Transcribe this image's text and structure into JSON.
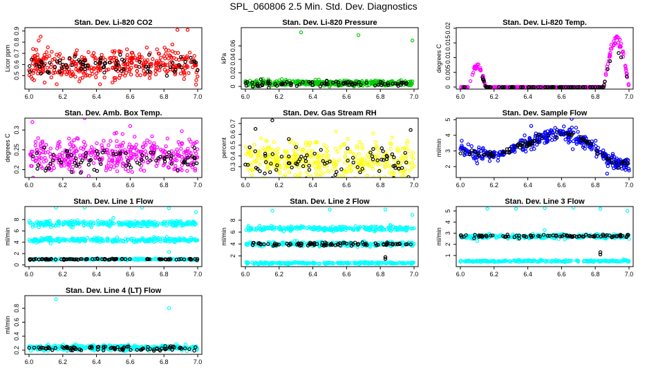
{
  "figure_title": "SPL_060806  2.5 Min. Std. Dev. Diagnostics",
  "chart_data": [
    {
      "type": "scatter",
      "title": "Stan. Dev. Li-820 CO2",
      "ylabel": "Licor ppm",
      "xlim": [
        6.0,
        7.0
      ],
      "ylim": [
        0.38,
        0.93
      ],
      "xticks": [
        "6.0",
        "6.2",
        "6.4",
        "6.6",
        "6.8",
        "7.0"
      ],
      "yticks": [
        0.5,
        0.6,
        0.7,
        0.8,
        0.9
      ],
      "series": [
        {
          "name": "bulk",
          "color": "#ff0000",
          "gen": {
            "base": 0.6,
            "noise": 0.07,
            "n": 380,
            "seed": 11
          }
        },
        {
          "name": "black",
          "color": "#000000",
          "gen": {
            "base": 0.59,
            "noise": 0.05,
            "n": 80,
            "seed": 12
          }
        },
        {
          "name": "outliers",
          "color": "#ff0000",
          "points": [
            [
              6.88,
              0.91
            ],
            [
              6.94,
              0.91
            ],
            [
              6.99,
              0.42
            ],
            [
              6.03,
              0.46
            ],
            [
              6.85,
              0.78
            ]
          ]
        }
      ]
    },
    {
      "type": "scatter",
      "title": "Stan. Dev. Li-820 Pressure",
      "ylabel": "kPa",
      "xlim": [
        6.0,
        7.0
      ],
      "ylim": [
        -0.004,
        0.087
      ],
      "xticks": [
        "6.0",
        "6.2",
        "6.4",
        "6.6",
        "6.8",
        "7.0"
      ],
      "yticks": [
        0.0,
        0.02,
        0.04,
        0.06
      ],
      "series": [
        {
          "name": "bulk",
          "color": "#00cc00",
          "gen": {
            "base": 0.005,
            "noise": 0.002,
            "n": 380,
            "seed": 21
          }
        },
        {
          "name": "black",
          "color": "#000000",
          "gen": {
            "base": 0.004,
            "noise": 0.002,
            "n": 80,
            "seed": 22
          }
        },
        {
          "name": "outliers",
          "color": "#00cc00",
          "points": [
            [
              6.33,
              0.08
            ],
            [
              6.67,
              0.076
            ],
            [
              6.99,
              0.068
            ]
          ]
        }
      ]
    },
    {
      "type": "scatter",
      "title": "Stan. Dev. Li-820 Temp.",
      "ylabel": "degrees C",
      "xlim": [
        6.0,
        7.0
      ],
      "ylim": [
        -0.0007,
        0.0202
      ],
      "xticks": [
        "6.0",
        "6.2",
        "6.4",
        "6.6",
        "6.8",
        "7.0"
      ],
      "yticks": [
        0.0,
        0.005,
        0.01,
        0.015,
        0.02
      ],
      "series": [
        {
          "name": "bulk",
          "color": "#ff00ff",
          "gen": {
            "base": 0.0,
            "noise": 0.0,
            "n": 300,
            "seed": 31,
            "humps": [
              [
                6.05,
                6.15,
                0.008
              ],
              [
                6.85,
                7.0,
                0.018
              ]
            ]
          }
        },
        {
          "name": "black",
          "color": "#000000",
          "gen": {
            "base": 0.0,
            "noise": 0.0,
            "n": 80,
            "seed": 32,
            "humps": [
              [
                6.05,
                6.15,
                0.006
              ],
              [
                6.85,
                7.0,
                0.015
              ]
            ]
          }
        }
      ]
    },
    {
      "type": "scatter",
      "title": "Stan. Dev. Amb. Box Temp.",
      "ylabel": "degrees C",
      "xlim": [
        6.0,
        7.0
      ],
      "ylim": [
        0.18,
        0.33
      ],
      "xticks": [
        "6.0",
        "6.2",
        "6.4",
        "6.6",
        "6.8",
        "7.0"
      ],
      "yticks": [
        0.2,
        0.25,
        0.3
      ],
      "series": [
        {
          "name": "bulk",
          "color": "#ff00ff",
          "gen": {
            "base": 0.235,
            "noise": 0.022,
            "n": 380,
            "seed": 41
          }
        },
        {
          "name": "black",
          "color": "#000000",
          "gen": {
            "base": 0.225,
            "noise": 0.016,
            "n": 80,
            "seed": 42
          }
        },
        {
          "name": "outliers",
          "color": "#ff00ff",
          "points": [
            [
              6.02,
              0.32
            ],
            [
              6.33,
              0.33
            ],
            [
              6.6,
              0.31
            ]
          ]
        }
      ]
    },
    {
      "type": "scatter",
      "title": "Stan. Dev. Gas Stream RH",
      "ylabel": "percent",
      "xlim": [
        6.0,
        7.0
      ],
      "ylim": [
        0.2,
        0.75
      ],
      "xticks": [
        "6.0",
        "6.2",
        "6.4",
        "6.6",
        "6.8",
        "7.0"
      ],
      "yticks": [
        0.3,
        0.4,
        0.5,
        0.6,
        0.7
      ],
      "series": [
        {
          "name": "bulk",
          "color": "#ffff00",
          "gen": {
            "base": 0.36,
            "noise": 0.09,
            "n": 380,
            "seed": 51
          }
        },
        {
          "name": "black",
          "color": "#000000",
          "gen": {
            "base": 0.34,
            "noise": 0.08,
            "n": 80,
            "seed": 52
          }
        },
        {
          "name": "outliers",
          "color": "#000000",
          "points": [
            [
              6.16,
              0.73
            ],
            [
              6.06,
              0.65
            ],
            [
              6.98,
              0.64
            ]
          ]
        }
      ]
    },
    {
      "type": "scatter",
      "title": "Stan. Dev. Sample Flow",
      "ylabel": "ml/min",
      "xlim": [
        6.0,
        7.0
      ],
      "ylim": [
        1.3,
        5.1
      ],
      "xticks": [
        "6.0",
        "6.2",
        "6.4",
        "6.6",
        "6.8",
        "7.0"
      ],
      "yticks": [
        2,
        3,
        4,
        5
      ],
      "series": [
        {
          "name": "bulk",
          "color": "#0000ff",
          "gen": {
            "curve": [
              [
                6.0,
                3.1
              ],
              [
                6.1,
                2.8
              ],
              [
                6.2,
                2.7
              ],
              [
                6.3,
                3.1
              ],
              [
                6.4,
                3.5
              ],
              [
                6.5,
                3.9
              ],
              [
                6.6,
                4.2
              ],
              [
                6.7,
                3.9
              ],
              [
                6.8,
                3.2
              ],
              [
                6.9,
                2.3
              ],
              [
                7.0,
                2.1
              ]
            ],
            "noise": 0.22,
            "n": 380,
            "seed": 61
          }
        },
        {
          "name": "black",
          "color": "#000000",
          "gen": {
            "curve": [
              [
                6.0,
                3.1
              ],
              [
                6.1,
                2.8
              ],
              [
                6.2,
                2.7
              ],
              [
                6.3,
                3.1
              ],
              [
                6.4,
                3.5
              ],
              [
                6.5,
                3.9
              ],
              [
                6.6,
                4.2
              ],
              [
                6.7,
                3.9
              ],
              [
                6.8,
                3.2
              ],
              [
                6.9,
                2.3
              ],
              [
                7.0,
                2.1
              ]
            ],
            "noise": 0.12,
            "n": 80,
            "seed": 62
          }
        },
        {
          "name": "outliers",
          "color": "#0000ff",
          "points": [
            [
              6.66,
              5.05
            ],
            [
              6.87,
              1.55
            ],
            [
              6.42,
              4.6
            ],
            [
              6.1,
              2.2
            ]
          ]
        }
      ]
    },
    {
      "type": "scatter",
      "title": "Stan. Dev. Line 1 Flow",
      "ylabel": "ml/min",
      "xlim": [
        6.0,
        7.0
      ],
      "ylim": [
        -0.3,
        10.3
      ],
      "xticks": [
        "6.0",
        "6.2",
        "6.4",
        "6.6",
        "6.8",
        "7.0"
      ],
      "yticks": [
        0,
        2,
        4,
        6,
        8
      ],
      "series": [
        {
          "name": "band1",
          "color": "#00ffff",
          "gen": {
            "base": 7.3,
            "noise": 0.25,
            "n": 260,
            "seed": 71
          }
        },
        {
          "name": "band2",
          "color": "#00ffff",
          "gen": {
            "base": 4.4,
            "noise": 0.18,
            "n": 260,
            "seed": 72
          }
        },
        {
          "name": "band3",
          "color": "#00ffff",
          "gen": {
            "base": 1.0,
            "noise": 0.07,
            "n": 200,
            "seed": 73
          }
        },
        {
          "name": "black",
          "color": "#000000",
          "gen": {
            "base": 1.0,
            "noise": 0.05,
            "n": 90,
            "seed": 74
          }
        },
        {
          "name": "outliers",
          "color": "#00ffff",
          "points": [
            [
              6.16,
              10.1
            ],
            [
              6.33,
              10.1
            ],
            [
              6.67,
              10.1
            ],
            [
              6.83,
              10.0
            ],
            [
              6.99,
              9.3
            ],
            [
              6.5,
              8.3
            ],
            [
              6.83,
              2.3
            ]
          ]
        }
      ]
    },
    {
      "type": "scatter",
      "title": "Stan. Dev. Line 2 Flow",
      "ylabel": "ml/min",
      "xlim": [
        6.0,
        7.0
      ],
      "ylim": [
        0.2,
        10.3
      ],
      "xticks": [
        "6.0",
        "6.2",
        "6.4",
        "6.6",
        "6.8",
        "7.0"
      ],
      "yticks": [
        2,
        4,
        6,
        8
      ],
      "series": [
        {
          "name": "band1",
          "color": "#00ffff",
          "gen": {
            "base": 6.6,
            "noise": 0.2,
            "n": 260,
            "seed": 81
          }
        },
        {
          "name": "band2",
          "color": "#00ffff",
          "gen": {
            "base": 4.0,
            "noise": 0.2,
            "n": 220,
            "seed": 82
          }
        },
        {
          "name": "band3",
          "color": "#00ffff",
          "gen": {
            "base": 0.8,
            "noise": 0.07,
            "n": 220,
            "seed": 83
          }
        },
        {
          "name": "black",
          "color": "#000000",
          "gen": {
            "base": 4.0,
            "noise": 0.15,
            "n": 90,
            "seed": 84
          }
        },
        {
          "name": "outliers",
          "color": "#00ffff",
          "points": [
            [
              6.16,
              9.6
            ],
            [
              6.5,
              9.8
            ],
            [
              6.83,
              9.8
            ],
            [
              6.99,
              8.9
            ]
          ]
        },
        {
          "name": "outliers-black",
          "color": "#000000",
          "points": [
            [
              6.83,
              1.8
            ],
            [
              6.83,
              1.5
            ]
          ]
        }
      ]
    },
    {
      "type": "scatter",
      "title": "Stan. Dev. Line 3 Flow",
      "ylabel": "ml/min",
      "xlim": [
        6.0,
        7.0
      ],
      "ylim": [
        0.0,
        5.4
      ],
      "xticks": [
        "6.0",
        "6.2",
        "6.4",
        "6.6",
        "6.8",
        "7.0"
      ],
      "yticks": [
        1,
        2,
        3,
        4,
        5
      ],
      "series": [
        {
          "name": "band1",
          "color": "#00ffff",
          "gen": {
            "base": 2.7,
            "noise": 0.1,
            "n": 260,
            "seed": 91
          }
        },
        {
          "name": "band2",
          "color": "#00ffff",
          "gen": {
            "base": 0.5,
            "noise": 0.04,
            "n": 240,
            "seed": 92
          }
        },
        {
          "name": "black",
          "color": "#000000",
          "gen": {
            "base": 2.75,
            "noise": 0.08,
            "n": 90,
            "seed": 93
          }
        },
        {
          "name": "outliers",
          "color": "#00ffff",
          "points": [
            [
              6.16,
              5.2
            ],
            [
              6.33,
              5.2
            ],
            [
              6.5,
              5.25
            ],
            [
              6.67,
              5.3
            ],
            [
              6.83,
              5.2
            ],
            [
              6.99,
              5.0
            ],
            [
              6.5,
              3.3
            ],
            [
              6.1,
              2.3
            ]
          ]
        },
        {
          "name": "outliers-black",
          "color": "#000000",
          "points": [
            [
              6.83,
              1.3
            ],
            [
              6.83,
              1.1
            ]
          ]
        }
      ]
    },
    {
      "type": "scatter",
      "title": "Stan. Dev. Line 4 (LT) Flow",
      "ylabel": "ml/min",
      "xlim": [
        6.0,
        7.0
      ],
      "ylim": [
        0.14,
        0.98
      ],
      "xticks": [
        "6.0",
        "6.2",
        "6.4",
        "6.6",
        "6.8",
        "7.0"
      ],
      "yticks": [
        0.2,
        0.4,
        0.6,
        0.8
      ],
      "series": [
        {
          "name": "bulk",
          "color": "#00ffff",
          "gen": {
            "base": 0.235,
            "noise": 0.018,
            "n": 380,
            "seed": 101
          }
        },
        {
          "name": "black",
          "color": "#000000",
          "gen": {
            "base": 0.225,
            "noise": 0.015,
            "n": 90,
            "seed": 102
          }
        },
        {
          "name": "outliers",
          "color": "#00ffff",
          "points": [
            [
              6.16,
              0.93
            ],
            [
              6.83,
              0.8
            ]
          ]
        }
      ]
    }
  ]
}
